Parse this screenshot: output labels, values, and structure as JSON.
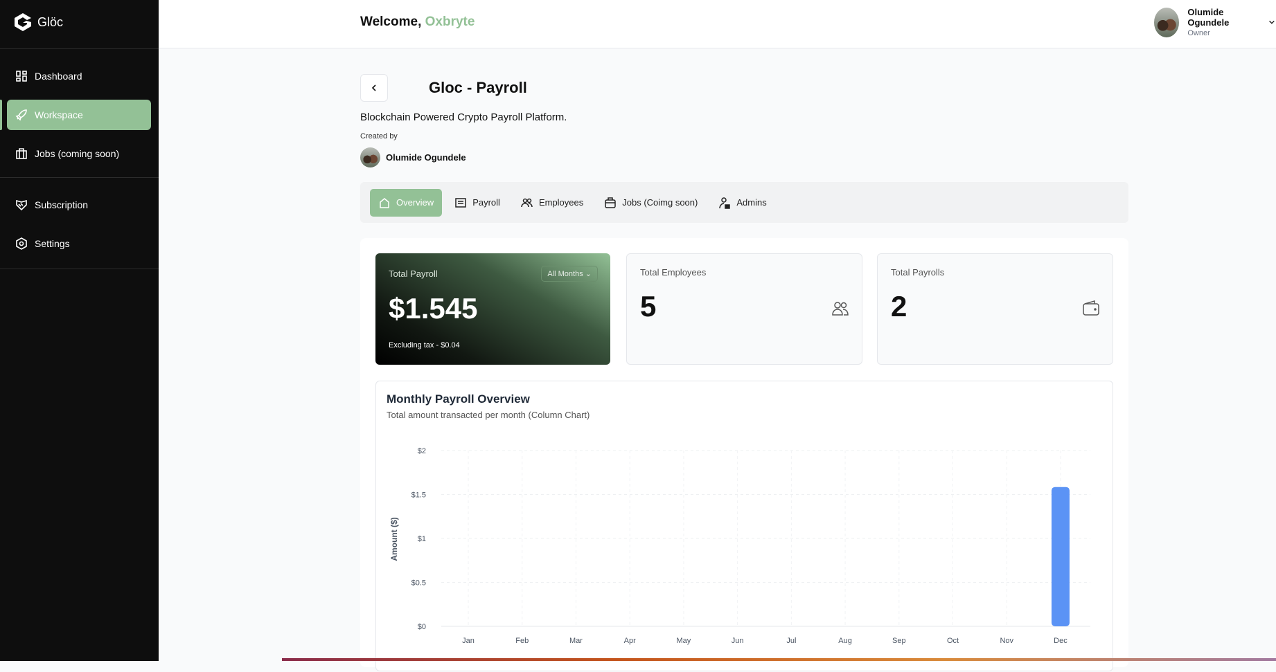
{
  "sidebar": {
    "brand": "Glöc",
    "items": [
      {
        "label": "Dashboard",
        "icon": "dashboard-icon"
      },
      {
        "label": "Workspace",
        "icon": "rocket-icon",
        "active": true
      },
      {
        "label": "Jobs (coming soon)",
        "icon": "briefcase-icon"
      },
      {
        "label": "Subscription",
        "icon": "handshake-icon"
      },
      {
        "label": "Settings",
        "icon": "settings-icon"
      }
    ]
  },
  "header": {
    "welcome": "Welcome,",
    "username": "Oxbryte",
    "user_name": "Olumide Ogundele",
    "user_role": "Owner"
  },
  "project": {
    "title": "Gloc - Payroll",
    "description": "Blockchain Powered Crypto Payroll Platform.",
    "created_by_label": "Created by",
    "creator": "Olumide Ogundele"
  },
  "tabs": [
    {
      "label": "Overview",
      "active": true
    },
    {
      "label": "Payroll"
    },
    {
      "label": "Employees"
    },
    {
      "label": "Jobs (Coimg soon)"
    },
    {
      "label": "Admins"
    }
  ],
  "stats": {
    "total_payroll_label": "Total Payroll",
    "filter": "All Months",
    "total_payroll": "$1.545",
    "tax": "Excluding tax - $0.04",
    "employees_label": "Total Employees",
    "employees": "5",
    "payrolls_label": "Total Payrolls",
    "payrolls": "2"
  },
  "colors": {
    "accent": "#93c196",
    "bar": "#5b93f5"
  },
  "chart_data": {
    "type": "bar",
    "title": "Monthly Payroll Overview",
    "subtitle": "Total amount transacted per month (Column Chart)",
    "ylabel": "Amount ($)",
    "xlabel": "",
    "categories": [
      "Jan",
      "Feb",
      "Mar",
      "Apr",
      "May",
      "Jun",
      "Jul",
      "Aug",
      "Sep",
      "Oct",
      "Nov",
      "Dec"
    ],
    "values": [
      0,
      0,
      0,
      0,
      0,
      0,
      0,
      0,
      0,
      0,
      0,
      1.585
    ],
    "ylim": [
      0,
      2
    ],
    "yticks": [
      "$0",
      "$0.5",
      "$1",
      "$1.5",
      "$2"
    ],
    "grid": true
  }
}
